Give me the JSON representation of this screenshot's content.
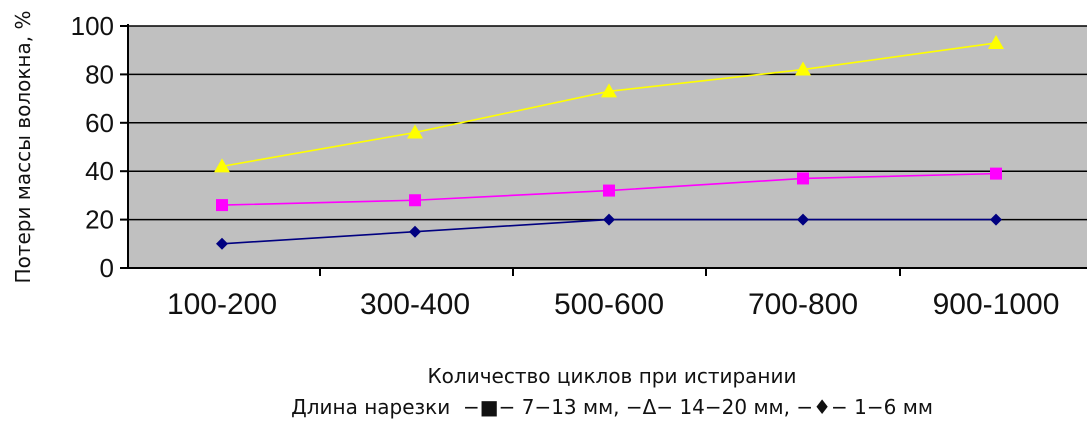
{
  "chart_data": {
    "type": "line",
    "title": "",
    "xlabel": "Количество циклов при истирании",
    "ylabel": "Потери массы волокна, %",
    "categories": [
      "100-200",
      "300-400",
      "500-600",
      "700-800",
      "900-1000"
    ],
    "ylim": [
      0,
      100
    ],
    "yticks": [
      0,
      20,
      40,
      60,
      80,
      100
    ],
    "grid": true,
    "legend_caption": "Длина нарезки  −■− 7−13 мм, −Δ− 14−20 мм, −♦− 1−6 мм",
    "series": [
      {
        "name": "14−20 мм",
        "marker": "triangle",
        "color": "#ffff00",
        "values": [
          42,
          56,
          73,
          82,
          93
        ]
      },
      {
        "name": "7−13 мм",
        "marker": "square",
        "color": "#ff00ff",
        "values": [
          26,
          28,
          32,
          37,
          39
        ]
      },
      {
        "name": "1−6 мм",
        "marker": "diamond",
        "color": "#000080",
        "values": [
          10,
          15,
          20,
          20,
          20
        ]
      }
    ],
    "plot_background": "#c0c0c0"
  }
}
